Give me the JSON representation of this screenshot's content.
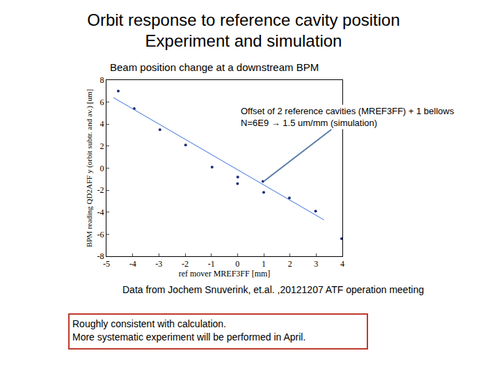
{
  "title": [
    "Orbit response to reference cavity position",
    "Experiment and simulation"
  ],
  "chart_data": {
    "type": "scatter",
    "subtitle": "Beam position change at a downstream BPM",
    "x_label": "ref mover MREF3FF [mm]",
    "y_label": "BPM reading QD2AFF y (orbit subtr. and av.) [um]",
    "xlim": [
      -5,
      4
    ],
    "xticks": [
      -5,
      -4,
      -3,
      -2,
      -1,
      0,
      1,
      2,
      3,
      4
    ],
    "ylim": [
      -8,
      8
    ],
    "yticks": [
      -8,
      -6,
      -4,
      -2,
      0,
      2,
      4,
      6,
      8
    ],
    "grid": false,
    "series": [
      {
        "type": "scatter",
        "marker": "dot",
        "color": "#1f2f7a",
        "x": [
          -4.55,
          -3.94,
          -2.96,
          -1.98,
          -0.97,
          0.01,
          0.0,
          0.97,
          1.0,
          1.98,
          2.98,
          3.97
        ],
        "values": [
          7.0,
          5.4,
          3.5,
          2.1,
          0.1,
          -0.8,
          -1.4,
          -1.2,
          -2.2,
          -2.7,
          -3.9,
          -6.4
        ]
      },
      {
        "type": "line",
        "line_style": "solid",
        "color": "#3a6fd8",
        "x": [
          -4.73,
          3.3
        ],
        "values": [
          6.4,
          -4.7
        ]
      }
    ],
    "annotation": {
      "text": [
        "Offset of 2 reference cavities (MREF3FF) + 1 bellows",
        "N=6E9 → 1.5 um/mm (simulation)"
      ],
      "x": 1,
      "y": -1.2
    }
  },
  "footnote": "Data from Jochem Snuverink, et.al. ,20121207 ATF operation meeting",
  "conclusion": [
    "Roughly consistent with calculation.",
    "More systematic experiment will be performed in April."
  ]
}
